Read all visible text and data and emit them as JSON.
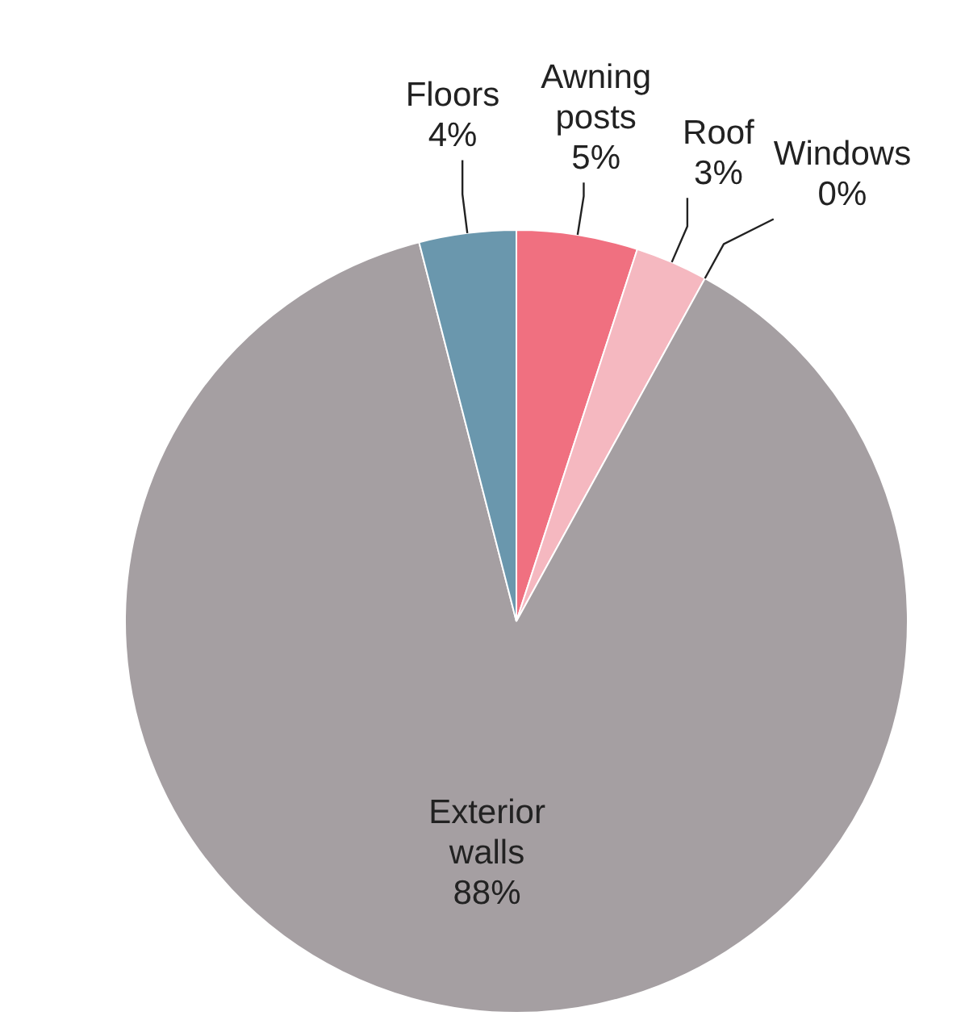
{
  "chart_data": {
    "type": "pie",
    "categories": [
      "Awning posts",
      "Roof",
      "Windows",
      "Exterior walls",
      "Floors"
    ],
    "values": [
      5,
      3,
      0,
      88,
      4
    ],
    "colors": [
      "#f07080",
      "#f5b8c0",
      "#8a6a70",
      "#a59fa2",
      "#6a97ad"
    ],
    "value_labels": [
      "5%",
      "3%",
      "0%",
      "88%",
      "4%"
    ],
    "legend": false
  }
}
